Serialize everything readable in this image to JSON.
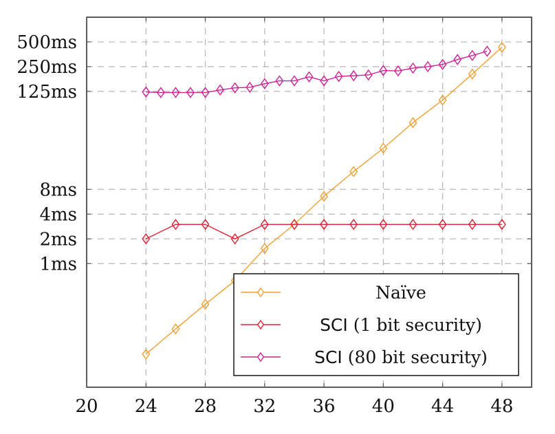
{
  "chart_data": {
    "type": "line",
    "title": "",
    "xlabel": "",
    "ylabel": "",
    "x_scale": "linear",
    "y_scale": "log2",
    "xlim": [
      20,
      50
    ],
    "ylim_ms": [
      0.03125,
      1000
    ],
    "grid": true,
    "x_ticks": [
      20,
      24,
      28,
      32,
      36,
      40,
      44,
      48
    ],
    "x_tick_labels": [
      "20",
      "24",
      "28",
      "32",
      "36",
      "40",
      "44",
      "48"
    ],
    "y_ticks_ms": [
      1,
      2,
      4,
      8,
      125,
      250,
      500
    ],
    "y_tick_labels": [
      "1ms",
      "2ms",
      "4ms",
      "8ms",
      "125ms",
      "250ms",
      "500ms"
    ],
    "legend_position": "bottom-right",
    "series": [
      {
        "name": "Naïve",
        "legend_parts": [
          "",
          "Naïve"
        ],
        "color": "#F0A030",
        "marker": "diamond",
        "x": [
          24,
          26,
          28,
          30,
          32,
          34,
          36,
          38,
          40,
          42,
          44,
          46,
          48
        ],
        "y_ms": [
          0.079,
          0.16,
          0.32,
          0.62,
          1.53,
          3.0,
          6.6,
          13.2,
          25.4,
          52,
          98,
          203,
          431
        ]
      },
      {
        "name": "SCI (1 bit security)",
        "legend_parts": [
          "SCI",
          " (1 bit security)"
        ],
        "color": "#DD2233",
        "marker": "diamond",
        "x": [
          24,
          26,
          28,
          30,
          32,
          34,
          36,
          38,
          40,
          42,
          44,
          46,
          48
        ],
        "y_ms": [
          2,
          3,
          3,
          2,
          3,
          3,
          3,
          3,
          3,
          3,
          3,
          3,
          3
        ]
      },
      {
        "name": "SCI (80 bit security)",
        "legend_parts": [
          "SCI",
          " (80 bit security)"
        ],
        "color": "#CC2299",
        "marker": "diamond",
        "x": [
          24,
          25,
          26,
          27,
          28,
          29,
          30,
          31,
          32,
          33,
          34,
          35,
          36,
          37,
          38,
          39,
          40,
          41,
          42,
          43,
          44,
          45,
          46,
          47
        ],
        "y_ms": [
          123,
          121,
          121,
          121,
          121,
          130,
          138,
          140,
          155,
          168,
          168,
          188,
          168,
          190,
          194,
          198,
          224,
          222,
          240,
          250,
          266,
          305,
          342,
          385
        ]
      }
    ]
  }
}
